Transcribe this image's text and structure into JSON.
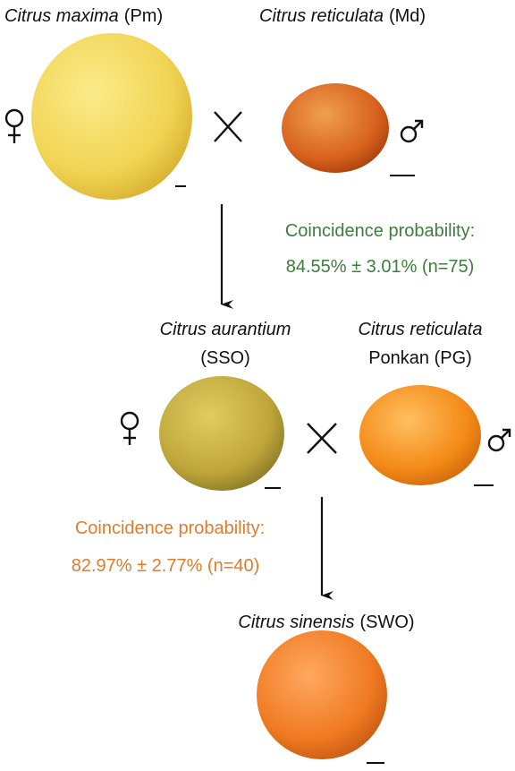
{
  "parents_1": [
    {
      "species": "Citrus maxima",
      "code": "(Pm)"
    },
    {
      "species": "Citrus reticulata",
      "code": "(Md)"
    }
  ],
  "probability_1": {
    "label": "Coincidence probability:",
    "value": "84.55% ± 3.01% (n=75)"
  },
  "parents_2": [
    {
      "species": "Citrus aurantium",
      "code": "(SSO)"
    },
    {
      "species": "Citrus reticulata",
      "code": "Ponkan (PG)"
    }
  ],
  "probability_2": {
    "label": "Coincidence probability:",
    "value": "82.97% ± 2.77% (n=40)"
  },
  "offspring": {
    "species": "Citrus sinensis",
    "code": "(SWO)"
  }
}
